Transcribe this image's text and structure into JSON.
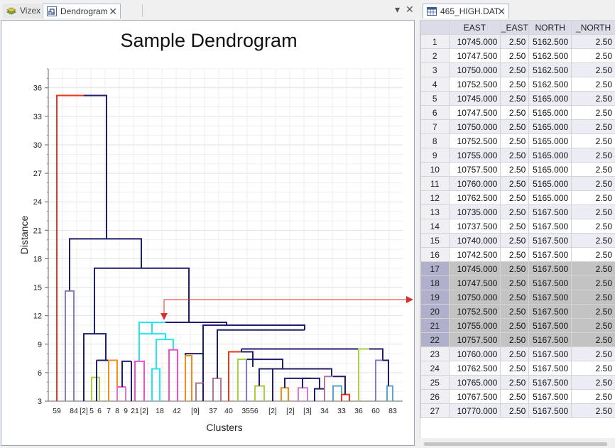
{
  "left_tabs": {
    "vizex": "Vizex",
    "dendrogram": "Dendrogram",
    "close": "✕"
  },
  "pane_controls": {
    "dropdown": "▾",
    "close": "✕"
  },
  "right_tabs": {
    "file": "465_HIGH.DAT",
    "close": "✕"
  },
  "chart_data": {
    "type": "dendrogram",
    "title": "Sample Dendrogram",
    "xlabel": "Clusters",
    "ylabel": "Distance",
    "ylim": [
      3,
      38
    ],
    "yticks": [
      3,
      6,
      9,
      12,
      15,
      18,
      21,
      24,
      27,
      30,
      33,
      36
    ],
    "grid": true,
    "leaves": [
      "59",
      "84",
      "[2]",
      "5",
      "6",
      "7",
      "8",
      "9",
      "21",
      "[2]",
      "18",
      "42",
      "[9]",
      "37",
      "40",
      "3556",
      "[2]",
      "[2]",
      "[3]",
      "34",
      "33",
      "36",
      "60",
      "83"
    ],
    "selection_marker": "red arrow from cluster node at distance ~11 to grid rows 17–22",
    "colors": {
      "main": "#1f1f6e",
      "red": "#e8371a",
      "purple": "#8a7bc0",
      "lime": "#a8d040",
      "orange": "#f08c1e",
      "magenta": "#f050c8",
      "cyan": "#22e8f0",
      "pink": "#d878d0",
      "mauve": "#b07898",
      "teal": "#5aa8c8"
    }
  },
  "grid": {
    "columns": [
      "",
      "EAST",
      "_EAST",
      "NORTH",
      "_NORTH"
    ],
    "rows": [
      [
        "1",
        "10745.000",
        "2.50",
        "5162.500",
        "2.50"
      ],
      [
        "2",
        "10747.500",
        "2.50",
        "5162.500",
        "2.50"
      ],
      [
        "3",
        "10750.000",
        "2.50",
        "5162.500",
        "2.50"
      ],
      [
        "4",
        "10752.500",
        "2.50",
        "5162.500",
        "2.50"
      ],
      [
        "5",
        "10745.000",
        "2.50",
        "5165.000",
        "2.50"
      ],
      [
        "6",
        "10747.500",
        "2.50",
        "5165.000",
        "2.50"
      ],
      [
        "7",
        "10750.000",
        "2.50",
        "5165.000",
        "2.50"
      ],
      [
        "8",
        "10752.500",
        "2.50",
        "5165.000",
        "2.50"
      ],
      [
        "9",
        "10755.000",
        "2.50",
        "5165.000",
        "2.50"
      ],
      [
        "10",
        "10757.500",
        "2.50",
        "5165.000",
        "2.50"
      ],
      [
        "11",
        "10760.000",
        "2.50",
        "5165.000",
        "2.50"
      ],
      [
        "12",
        "10762.500",
        "2.50",
        "5165.000",
        "2.50"
      ],
      [
        "13",
        "10735.000",
        "2.50",
        "5167.500",
        "2.50"
      ],
      [
        "14",
        "10737.500",
        "2.50",
        "5167.500",
        "2.50"
      ],
      [
        "15",
        "10740.000",
        "2.50",
        "5167.500",
        "2.50"
      ],
      [
        "16",
        "10742.500",
        "2.50",
        "5167.500",
        "2.50"
      ],
      [
        "17",
        "10745.000",
        "2.50",
        "5167.500",
        "2.50"
      ],
      [
        "18",
        "10747.500",
        "2.50",
        "5167.500",
        "2.50"
      ],
      [
        "19",
        "10750.000",
        "2.50",
        "5167.500",
        "2.50"
      ],
      [
        "20",
        "10752.500",
        "2.50",
        "5167.500",
        "2.50"
      ],
      [
        "21",
        "10755.000",
        "2.50",
        "5167.500",
        "2.50"
      ],
      [
        "22",
        "10757.500",
        "2.50",
        "5167.500",
        "2.50"
      ],
      [
        "23",
        "10760.000",
        "2.50",
        "5167.500",
        "2.50"
      ],
      [
        "24",
        "10762.500",
        "2.50",
        "5167.500",
        "2.50"
      ],
      [
        "25",
        "10765.000",
        "2.50",
        "5167.500",
        "2.50"
      ],
      [
        "26",
        "10767.500",
        "2.50",
        "5167.500",
        "2.50"
      ],
      [
        "27",
        "10770.000",
        "2.50",
        "5167.500",
        "2.50"
      ]
    ],
    "selected_rows": [
      "17",
      "18",
      "19",
      "20",
      "21",
      "22"
    ]
  }
}
